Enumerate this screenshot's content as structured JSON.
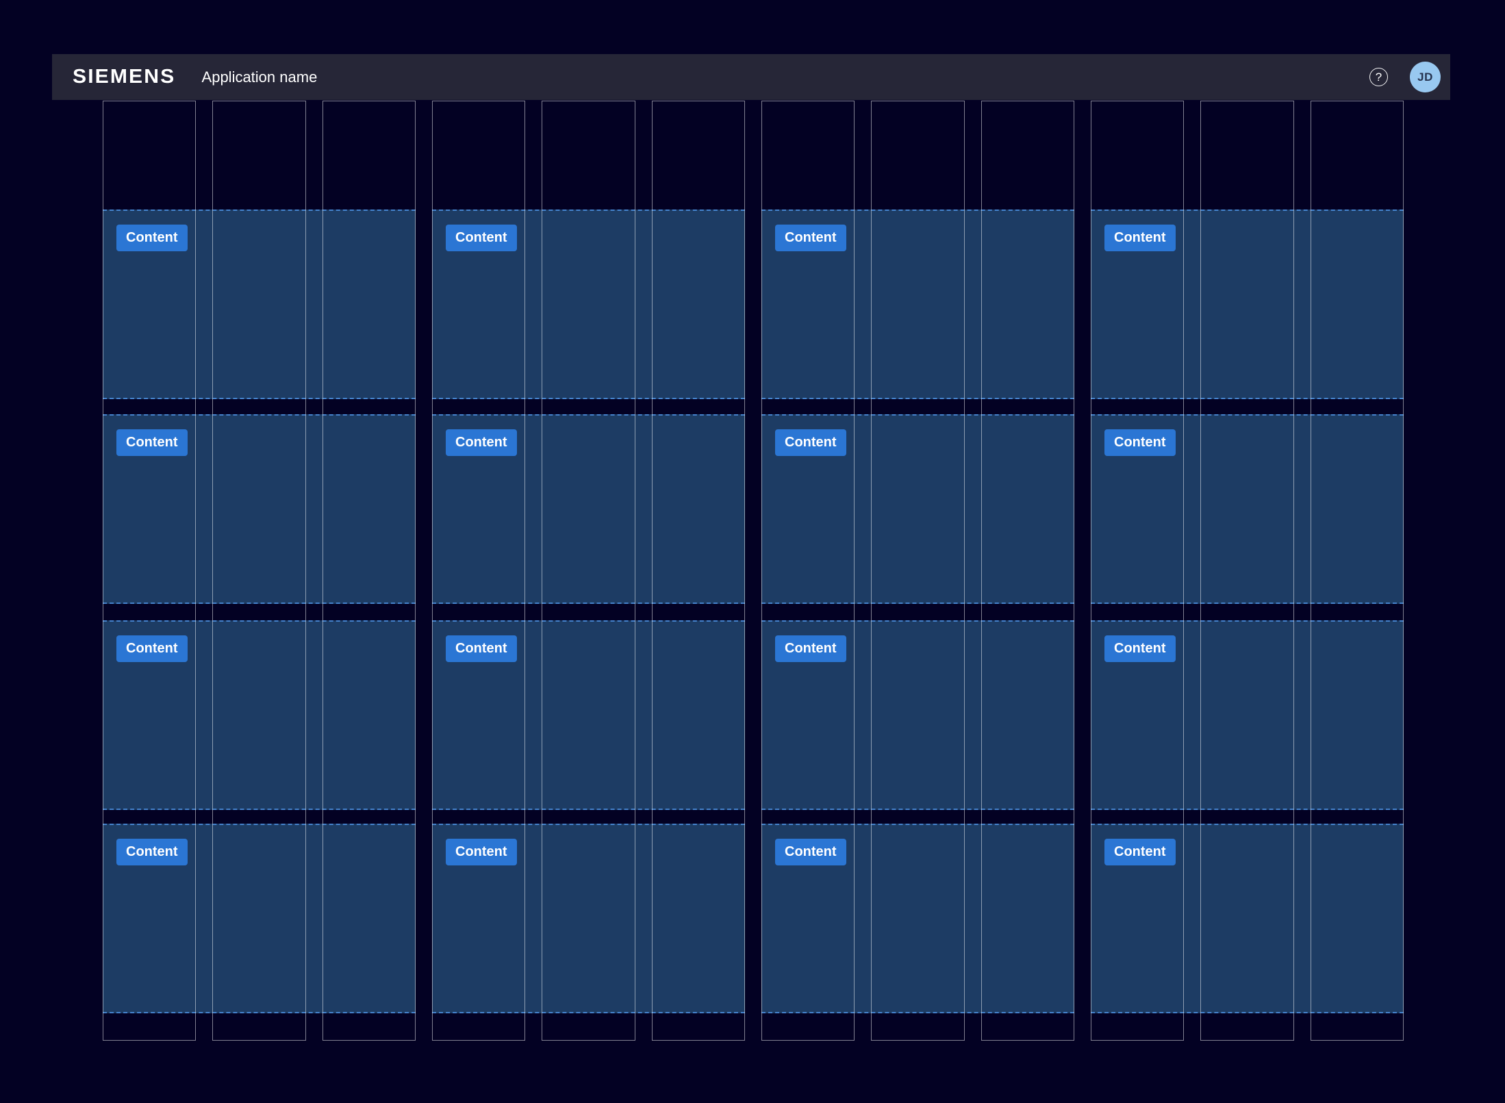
{
  "header": {
    "brand": "SIEMENS",
    "app_name": "Application name",
    "help_icon": "question-mark-circle-icon",
    "help_glyph": "?",
    "avatar_initials": "JD"
  },
  "grid": {
    "column_count": 12,
    "group_count": 4,
    "row_count": 4,
    "cards": [
      {
        "row": 0,
        "group": 0,
        "button_label": "Content"
      },
      {
        "row": 0,
        "group": 1,
        "button_label": "Content"
      },
      {
        "row": 0,
        "group": 2,
        "button_label": "Content"
      },
      {
        "row": 0,
        "group": 3,
        "button_label": "Content"
      },
      {
        "row": 1,
        "group": 0,
        "button_label": "Content"
      },
      {
        "row": 1,
        "group": 1,
        "button_label": "Content"
      },
      {
        "row": 1,
        "group": 2,
        "button_label": "Content"
      },
      {
        "row": 1,
        "group": 3,
        "button_label": "Content"
      },
      {
        "row": 2,
        "group": 0,
        "button_label": "Content"
      },
      {
        "row": 2,
        "group": 1,
        "button_label": "Content"
      },
      {
        "row": 2,
        "group": 2,
        "button_label": "Content"
      },
      {
        "row": 2,
        "group": 3,
        "button_label": "Content"
      },
      {
        "row": 3,
        "group": 0,
        "button_label": "Content"
      },
      {
        "row": 3,
        "group": 1,
        "button_label": "Content"
      },
      {
        "row": 3,
        "group": 2,
        "button_label": "Content"
      },
      {
        "row": 3,
        "group": 3,
        "button_label": "Content"
      }
    ]
  },
  "colors": {
    "page_background": "#030123",
    "header_background": "#262637",
    "header_text": "#ffffff",
    "card_background": "#1d3c64",
    "card_dashed_border": "#4583cd",
    "button_background": "#2b76d4",
    "button_text": "#ffffff",
    "avatar_background": "#98c8f0",
    "avatar_text": "#26334f",
    "column_outline": "rgba(255,255,255,0.5)"
  }
}
